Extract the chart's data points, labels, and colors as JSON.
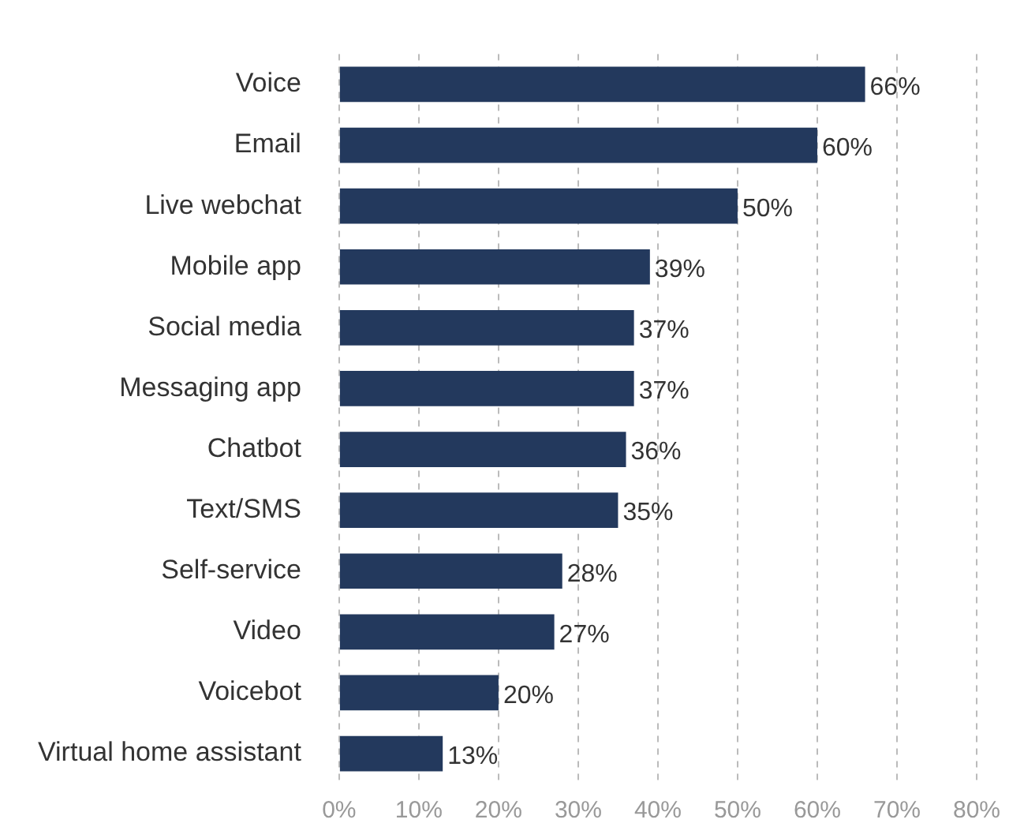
{
  "chart_data": {
    "type": "bar",
    "orientation": "horizontal",
    "categories": [
      "Voice",
      "Email",
      "Live webchat",
      "Mobile app",
      "Social media",
      "Messaging app",
      "Chatbot",
      "Text/SMS",
      "Self-service",
      "Video",
      "Voicebot",
      "Virtual home assistant"
    ],
    "values": [
      66,
      60,
      50,
      39,
      37,
      37,
      36,
      35,
      28,
      27,
      20,
      13
    ],
    "value_labels": [
      "66%",
      "60%",
      "50%",
      "39%",
      "37%",
      "37%",
      "36%",
      "35%",
      "28%",
      "27%",
      "20%",
      "13%"
    ],
    "color": "#23395d",
    "xlim": [
      0,
      80
    ],
    "xticks": [
      {
        "value": 0,
        "label": "0%"
      },
      {
        "value": 10,
        "label": "10%"
      },
      {
        "value": 20,
        "label": "20%"
      },
      {
        "value": 30,
        "label": "30%"
      },
      {
        "value": 40,
        "label": "40%"
      },
      {
        "value": 50,
        "label": "50%"
      },
      {
        "value": 60,
        "label": "60%"
      },
      {
        "value": 70,
        "label": "70%"
      },
      {
        "value": 80,
        "label": "80%"
      }
    ],
    "grid": "x",
    "legend": false
  }
}
